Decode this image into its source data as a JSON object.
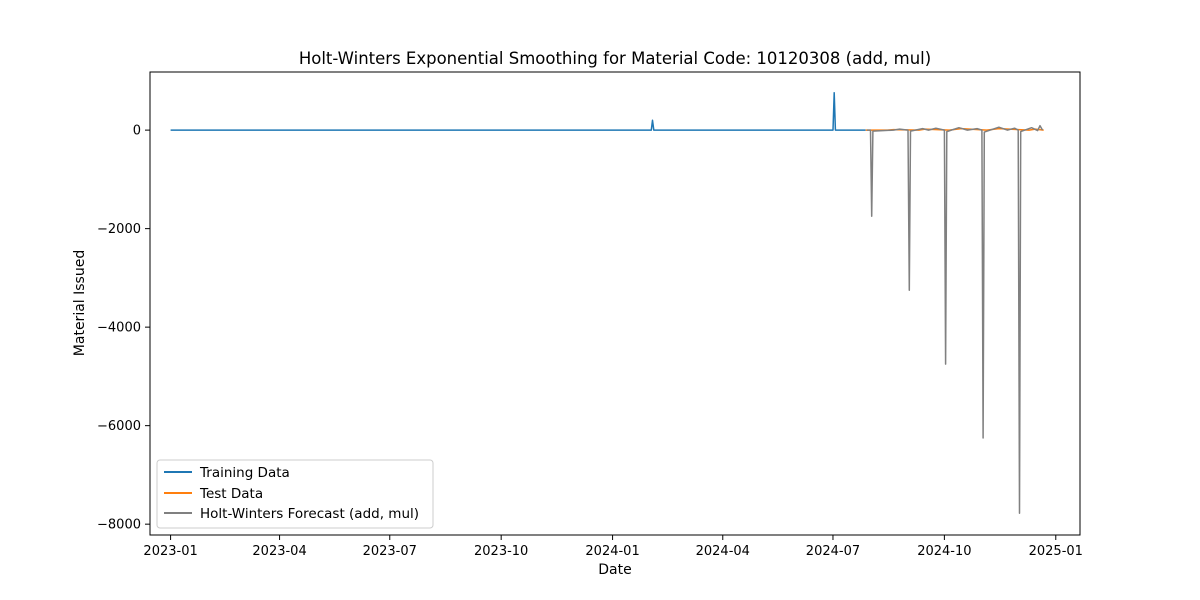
{
  "chart_data": {
    "type": "line",
    "title": "Holt-Winters Exponential Smoothing for Material Code: 10120308 (add, mul)",
    "xlabel": "Date",
    "ylabel": "Material Issued",
    "x_ticks": [
      "2023-01",
      "2023-04",
      "2023-07",
      "2023-10",
      "2024-01",
      "2024-04",
      "2024-07",
      "2024-10",
      "2025-01"
    ],
    "y_ticks": [
      0,
      -2000,
      -4000,
      -6000,
      -8000
    ],
    "y_tick_labels": [
      "0",
      "−2000",
      "−4000",
      "−6000",
      "−8000"
    ],
    "xlim": [
      "2022-12-15",
      "2025-01-21"
    ],
    "ylim": [
      -8220,
      1180
    ],
    "grid": false,
    "legend_position": "lower left",
    "series": [
      {
        "name": "Training Data",
        "color": "#1f77b4",
        "points": [
          [
            "2023-01-01",
            0
          ],
          [
            "2024-02-02",
            0
          ],
          [
            "2024-02-03",
            200
          ],
          [
            "2024-02-04",
            0
          ],
          [
            "2024-07-01",
            0
          ],
          [
            "2024-07-02",
            760
          ],
          [
            "2024-07-03",
            0
          ],
          [
            "2024-07-28",
            0
          ]
        ]
      },
      {
        "name": "Test Data",
        "color": "#ff7f0e",
        "points": [
          [
            "2024-07-28",
            0
          ],
          [
            "2024-08-15",
            0
          ],
          [
            "2024-08-20",
            10
          ],
          [
            "2024-09-10",
            0
          ],
          [
            "2024-09-15",
            20
          ],
          [
            "2024-10-05",
            0
          ],
          [
            "2024-10-15",
            30
          ],
          [
            "2024-11-05",
            0
          ],
          [
            "2024-11-15",
            30
          ],
          [
            "2024-12-10",
            0
          ],
          [
            "2024-12-15",
            20
          ],
          [
            "2024-12-22",
            0
          ]
        ]
      },
      {
        "name": "Holt-Winters Forecast (add, mul)",
        "color": "#808080",
        "points": [
          [
            "2024-07-29",
            0
          ],
          [
            "2024-08-01",
            0
          ],
          [
            "2024-08-02",
            -1750
          ],
          [
            "2024-08-03",
            -20
          ],
          [
            "2024-08-20",
            0
          ],
          [
            "2024-08-25",
            20
          ],
          [
            "2024-09-01",
            0
          ],
          [
            "2024-09-02",
            -3250
          ],
          [
            "2024-09-03",
            -20
          ],
          [
            "2024-09-13",
            30
          ],
          [
            "2024-09-18",
            0
          ],
          [
            "2024-09-24",
            40
          ],
          [
            "2024-10-01",
            0
          ],
          [
            "2024-10-02",
            -4750
          ],
          [
            "2024-10-03",
            -30
          ],
          [
            "2024-10-13",
            50
          ],
          [
            "2024-10-20",
            0
          ],
          [
            "2024-10-28",
            30
          ],
          [
            "2024-11-01",
            0
          ],
          [
            "2024-11-02",
            -6250
          ],
          [
            "2024-11-03",
            -40
          ],
          [
            "2024-11-15",
            60
          ],
          [
            "2024-11-22",
            0
          ],
          [
            "2024-11-28",
            40
          ],
          [
            "2024-12-01",
            0
          ],
          [
            "2024-12-02",
            -7780
          ],
          [
            "2024-12-03",
            -30
          ],
          [
            "2024-12-12",
            50
          ],
          [
            "2024-12-17",
            -10
          ],
          [
            "2024-12-19",
            90
          ],
          [
            "2024-12-21",
            0
          ]
        ]
      }
    ]
  }
}
